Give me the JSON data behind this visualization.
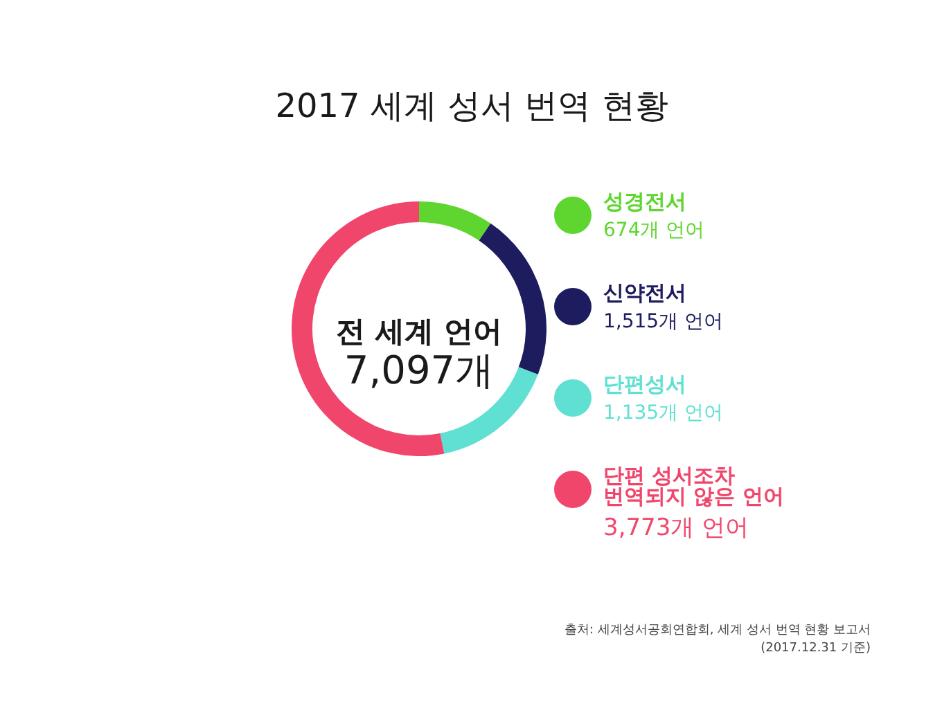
{
  "chart_data": {
    "type": "donut",
    "title": "2017 세계 성서 번역 현황",
    "categories": [
      "성경전서",
      "신약전서",
      "단편성서",
      "단편 성서조차 번역되지 않은 언어"
    ],
    "values": [
      674,
      1515,
      1135,
      3773
    ],
    "colors": [
      "#5ed62f",
      "#1c1c5e",
      "#5fe0d2",
      "#f1466b"
    ],
    "value_labels": [
      "674개 언어",
      "1,515개 언어",
      "1,135개 언어",
      "3,773개 언어"
    ],
    "legend": "right",
    "annotations": [
      "전 세계 언어",
      "7,097개",
      "출처: 세계성서공회연합회, 세계 성서 번역 현황 보고서",
      "(2017.12.31 기준)"
    ]
  }
}
